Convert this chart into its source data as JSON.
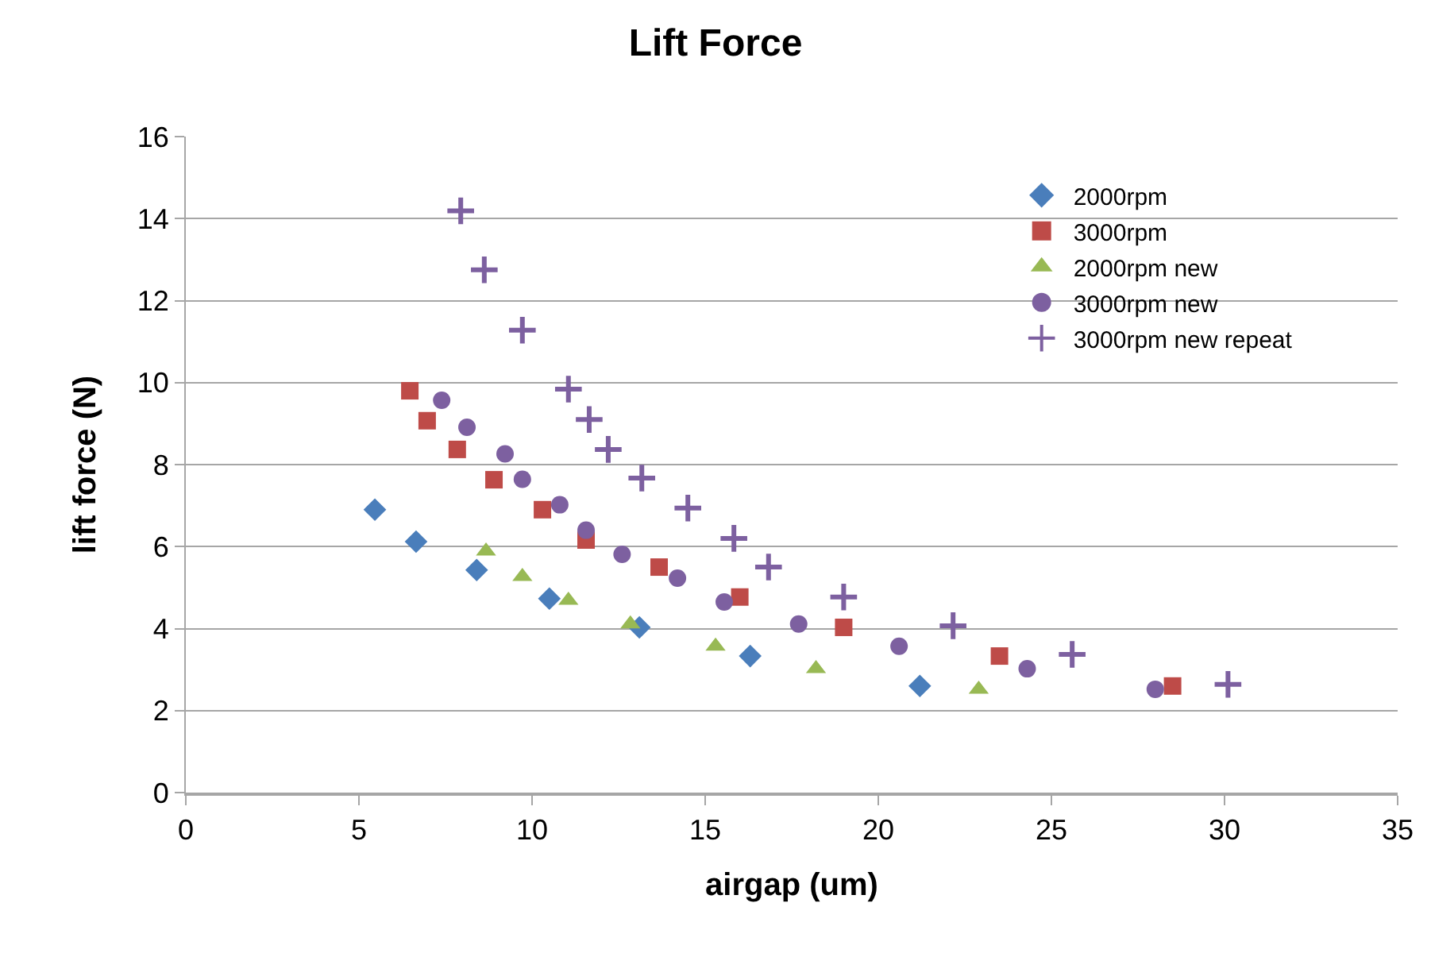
{
  "chart_data": {
    "type": "scatter",
    "title": "Lift Force",
    "xlabel": "airgap (um)",
    "ylabel": "lift force (N)",
    "xlim": [
      0,
      35
    ],
    "xticks": [
      0,
      5,
      10,
      15,
      20,
      25,
      30,
      35
    ],
    "ylim": [
      0,
      16
    ],
    "yticks": [
      0,
      2,
      4,
      6,
      8,
      10,
      12,
      14,
      16
    ],
    "grid": "y",
    "legend": "top right",
    "series": [
      {
        "name": "2000rpm",
        "color": "#4a7ebb",
        "marker": "diamond",
        "x": [
          5.46,
          6.65,
          8.4,
          10.5,
          13.1,
          16.3,
          21.2
        ],
        "values": [
          6.9,
          6.12,
          5.43,
          4.73,
          4.03,
          3.33,
          2.6
        ]
      },
      {
        "name": "3000rpm",
        "color": "#be4b48",
        "marker": "square",
        "x": [
          6.47,
          6.97,
          7.84,
          8.9,
          10.3,
          11.56,
          13.67,
          16.0,
          19.0,
          23.5,
          28.5
        ],
        "values": [
          9.8,
          9.07,
          8.37,
          7.63,
          6.9,
          6.16,
          5.5,
          4.77,
          4.03,
          3.33,
          2.6
        ]
      },
      {
        "name": "2000rpm new",
        "color": "#98b954",
        "marker": "triangle",
        "x": [
          8.67,
          9.72,
          11.05,
          12.84,
          15.3,
          18.2,
          22.9
        ],
        "values": [
          5.89,
          5.27,
          4.69,
          4.11,
          3.57,
          3.02,
          2.52
        ]
      },
      {
        "name": "3000rpm new",
        "color": "#7d60a0",
        "marker": "circle",
        "x": [
          7.39,
          8.12,
          9.22,
          9.72,
          10.8,
          11.56,
          12.6,
          14.2,
          15.55,
          17.7,
          20.6,
          24.3,
          28.0
        ],
        "values": [
          9.57,
          8.91,
          8.26,
          7.64,
          7.02,
          6.4,
          5.81,
          5.23,
          4.65,
          4.11,
          3.57,
          3.02,
          2.52
        ]
      },
      {
        "name": "3000rpm new repeat",
        "color": "#7d60a0",
        "marker": "cross",
        "x": [
          7.94,
          8.62,
          9.72,
          11.05,
          11.65,
          12.2,
          13.17,
          14.5,
          15.83,
          16.83,
          19.0,
          22.16,
          25.6,
          30.1
        ],
        "values": [
          14.19,
          12.75,
          11.28,
          9.84,
          9.1,
          8.37,
          7.67,
          6.94,
          6.2,
          5.5,
          4.77,
          4.07,
          3.37,
          2.64
        ]
      }
    ]
  }
}
